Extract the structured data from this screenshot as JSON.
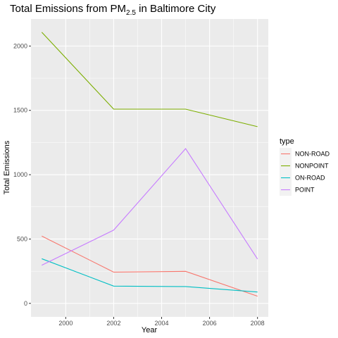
{
  "chart_data": {
    "type": "line",
    "title": {
      "main": "Total Emissions from PM",
      "subscript": "2.5",
      "suffix": " in Baltimore City"
    },
    "xlabel": "Year",
    "ylabel": "Total Emissions",
    "x": [
      1999,
      2002,
      2005,
      2008
    ],
    "xlim": [
      1998.55,
      2008.45
    ],
    "ylim": [
      -105,
      2210
    ],
    "x_ticks": [
      2000,
      2002,
      2004,
      2006,
      2008
    ],
    "x_tick_labels": [
      "2000",
      "2002",
      "2004",
      "2006",
      "2008"
    ],
    "y_ticks": [
      0,
      500,
      1000,
      1500,
      2000
    ],
    "y_tick_labels": [
      "0",
      "500",
      "1000",
      "1500",
      "2000"
    ],
    "grid": true,
    "legend": {
      "title": "type",
      "placement": "right"
    },
    "series": [
      {
        "name": "NON-ROAD",
        "color": "#F8766D",
        "values": [
          522.94,
          242.85,
          248.93,
          55.82
        ]
      },
      {
        "name": "NONPOINT",
        "color": "#7CAE00",
        "values": [
          2107.63,
          1509.5,
          1509.5,
          1373.21
        ]
      },
      {
        "name": "ON-ROAD",
        "color": "#00BFC4",
        "values": [
          346.82,
          134.31,
          130.43,
          88.28
        ]
      },
      {
        "name": "POINT",
        "color": "#C77CFF",
        "values": [
          296.8,
          569.26,
          1202.49,
          344.98
        ]
      }
    ]
  }
}
